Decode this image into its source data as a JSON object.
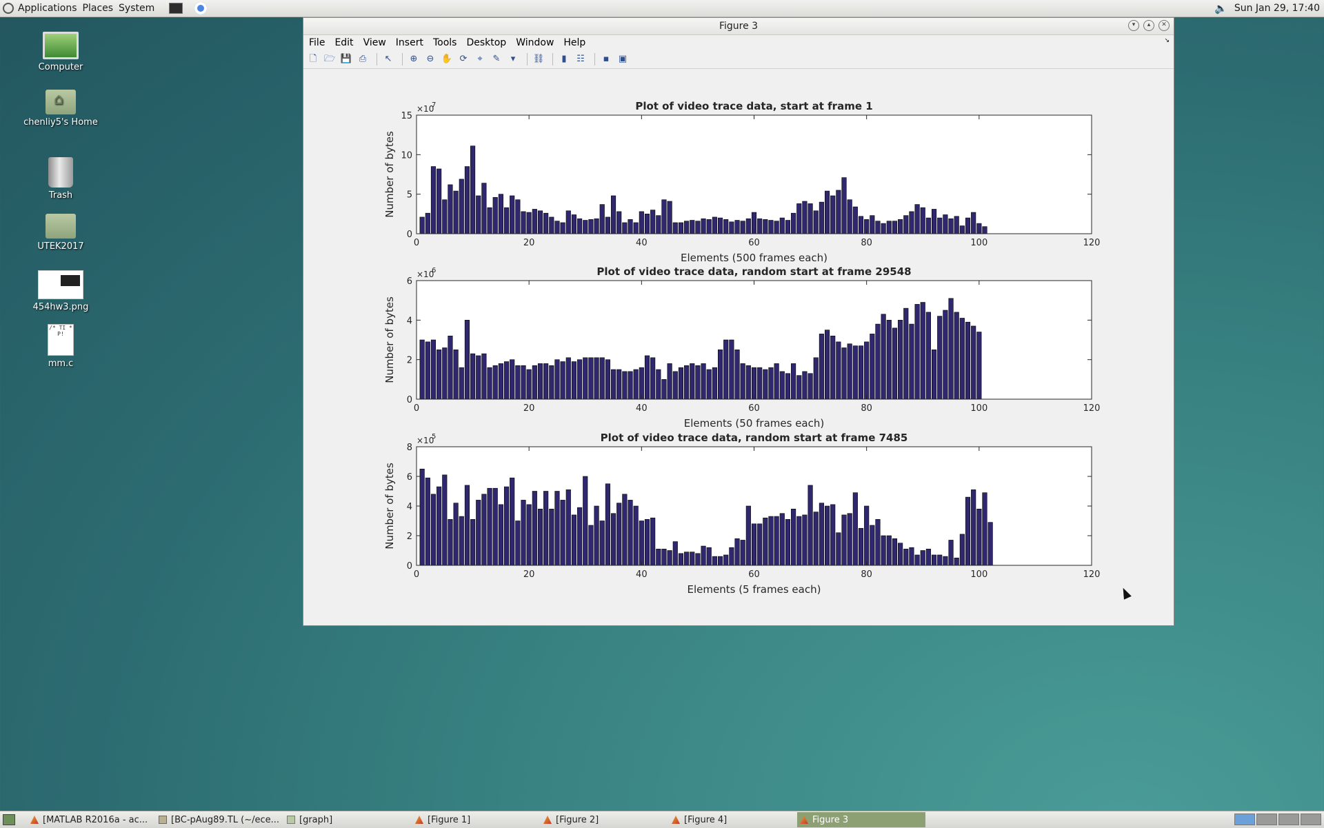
{
  "top_panel": {
    "menus": [
      "Applications",
      "Places",
      "System"
    ],
    "clock": "Sun Jan 29, 17:40"
  },
  "desktop_icons": [
    {
      "label": "Computer",
      "icon": "computer-icon"
    },
    {
      "label": "chenliy5's Home",
      "icon": "home-folder-icon"
    },
    {
      "label": "Trash",
      "icon": "trash-icon"
    },
    {
      "label": "UTEK2017",
      "icon": "folder-icon"
    },
    {
      "label": "454hw3.png",
      "icon": "image-file-icon"
    },
    {
      "label": "mm.c",
      "icon": "c-source-file-icon"
    }
  ],
  "window": {
    "title": "Figure 3",
    "menu": [
      "File",
      "Edit",
      "View",
      "Insert",
      "Tools",
      "Desktop",
      "Window",
      "Help"
    ]
  },
  "chart_data": [
    {
      "type": "bar",
      "title": "Plot of video trace data, start at frame 1",
      "xlabel": "Elements (500 frames each)",
      "ylabel": "Number of bytes",
      "exponent": "×10",
      "exponent_power": "7",
      "scale": 10000000,
      "xlim": [
        0,
        120
      ],
      "ylim": [
        0,
        15
      ],
      "xticks": [
        0,
        20,
        40,
        60,
        80,
        100,
        120
      ],
      "yticks": [
        0,
        5,
        10,
        15
      ],
      "bar_color": "#30286e",
      "values": [
        2.1,
        2.6,
        8.5,
        8.2,
        4.3,
        6.2,
        5.4,
        6.9,
        8.5,
        11.1,
        4.8,
        6.4,
        3.3,
        4.6,
        5.0,
        3.3,
        4.8,
        4.3,
        2.8,
        2.7,
        3.1,
        2.9,
        2.6,
        2.1,
        1.6,
        1.4,
        2.9,
        2.4,
        1.9,
        1.7,
        1.8,
        1.9,
        3.7,
        2.1,
        4.8,
        2.8,
        1.4,
        1.8,
        1.4,
        2.8,
        2.5,
        3.0,
        2.3,
        4.3,
        4.1,
        1.4,
        1.4,
        1.6,
        1.7,
        1.6,
        1.9,
        1.8,
        2.1,
        2.0,
        1.8,
        1.5,
        1.7,
        1.6,
        1.9,
        2.7,
        1.9,
        1.8,
        1.7,
        1.6,
        2.0,
        1.7,
        2.6,
        3.8,
        4.1,
        3.8,
        2.9,
        4.0,
        5.4,
        4.8,
        5.5,
        7.1,
        4.3,
        3.4,
        2.2,
        1.8,
        2.3,
        1.6,
        1.3,
        1.6,
        1.6,
        1.8,
        2.3,
        2.8,
        3.7,
        3.3,
        2.0,
        3.1,
        2.0,
        2.4,
        1.9,
        2.2,
        1.0,
        2.0,
        2.7,
        1.3,
        0.9
      ]
    },
    {
      "type": "bar",
      "title": "Plot of video trace data, random start at frame 29548",
      "xlabel": "Elements (50 frames each)",
      "ylabel": "Number of bytes",
      "exponent": "×10",
      "exponent_power": "6",
      "scale": 1000000,
      "xlim": [
        0,
        120
      ],
      "ylim": [
        0,
        6
      ],
      "xticks": [
        0,
        20,
        40,
        60,
        80,
        100,
        120
      ],
      "yticks": [
        0,
        2,
        4,
        6
      ],
      "bar_color": "#30286e",
      "values": [
        3.0,
        2.9,
        3.0,
        2.5,
        2.6,
        3.2,
        2.5,
        1.6,
        4.0,
        2.3,
        2.2,
        2.3,
        1.6,
        1.7,
        1.8,
        1.9,
        2.0,
        1.7,
        1.7,
        1.5,
        1.7,
        1.8,
        1.8,
        1.7,
        2.0,
        1.9,
        2.1,
        1.9,
        2.0,
        2.1,
        2.1,
        2.1,
        2.1,
        2.0,
        1.5,
        1.5,
        1.4,
        1.4,
        1.5,
        1.6,
        2.2,
        2.1,
        1.5,
        1.0,
        1.8,
        1.4,
        1.6,
        1.7,
        1.8,
        1.7,
        1.8,
        1.5,
        1.6,
        2.5,
        3.0,
        3.0,
        2.5,
        1.8,
        1.7,
        1.6,
        1.6,
        1.5,
        1.6,
        1.8,
        1.4,
        1.3,
        1.8,
        1.2,
        1.4,
        1.3,
        2.1,
        3.3,
        3.5,
        3.2,
        2.9,
        2.6,
        2.8,
        2.7,
        2.7,
        2.9,
        3.3,
        3.8,
        4.3,
        4.0,
        3.6,
        4.0,
        4.6,
        3.8,
        4.8,
        4.9,
        4.4,
        2.5,
        4.2,
        4.5,
        5.1,
        4.4,
        4.1,
        3.9,
        3.7,
        3.4
      ]
    },
    {
      "type": "bar",
      "title": "Plot of video trace data, random start at frame 7485",
      "xlabel": "Elements (5 frames each)",
      "ylabel": "Number of bytes",
      "exponent": "×10",
      "exponent_power": "5",
      "scale": 100000,
      "xlim": [
        0,
        120
      ],
      "ylim": [
        0,
        8
      ],
      "xticks": [
        0,
        20,
        40,
        60,
        80,
        100,
        120
      ],
      "yticks": [
        0,
        2,
        4,
        6,
        8
      ],
      "bar_color": "#30286e",
      "values": [
        6.5,
        5.9,
        4.8,
        5.3,
        6.1,
        3.1,
        4.2,
        3.3,
        5.4,
        3.1,
        4.4,
        4.8,
        5.2,
        5.2,
        4.1,
        5.3,
        5.9,
        3.0,
        4.4,
        4.1,
        5.0,
        3.8,
        5.0,
        3.8,
        5.0,
        4.4,
        5.1,
        3.4,
        3.9,
        6.0,
        2.7,
        4.0,
        3.0,
        5.5,
        3.5,
        4.2,
        4.8,
        4.4,
        4.0,
        3.0,
        3.1,
        3.2,
        1.1,
        1.1,
        1.0,
        1.6,
        0.8,
        0.9,
        0.9,
        0.8,
        1.3,
        1.2,
        0.6,
        0.6,
        0.7,
        1.2,
        1.8,
        1.7,
        4.0,
        2.8,
        2.8,
        3.2,
        3.3,
        3.3,
        3.5,
        3.1,
        3.8,
        3.3,
        3.4,
        5.4,
        3.6,
        4.2,
        4.0,
        4.1,
        2.2,
        3.4,
        3.5,
        4.9,
        2.5,
        4.0,
        2.7,
        3.1,
        2.0,
        2.0,
        1.8,
        1.5,
        1.1,
        1.2,
        0.7,
        1.0,
        1.1,
        0.7,
        0.7,
        0.6,
        1.7,
        0.5,
        2.1,
        4.6,
        5.1,
        3.8,
        4.9,
        2.9
      ]
    }
  ],
  "taskbar": {
    "tasks": [
      {
        "label": "[MATLAB R2016a - ac...",
        "icon": "matlab-icon",
        "active": false
      },
      {
        "label": "[BC-pAug89.TL (~/ece...",
        "icon": "text-editor-icon",
        "active": false
      },
      {
        "label": "[graph]",
        "icon": "folder-icon",
        "active": false
      },
      {
        "label": "[Figure 1]",
        "icon": "matlab-icon",
        "active": false
      },
      {
        "label": "[Figure 2]",
        "icon": "matlab-icon",
        "active": false
      },
      {
        "label": "[Figure 4]",
        "icon": "matlab-icon",
        "active": false
      },
      {
        "label": "Figure 3",
        "icon": "matlab-icon",
        "active": true
      }
    ]
  }
}
